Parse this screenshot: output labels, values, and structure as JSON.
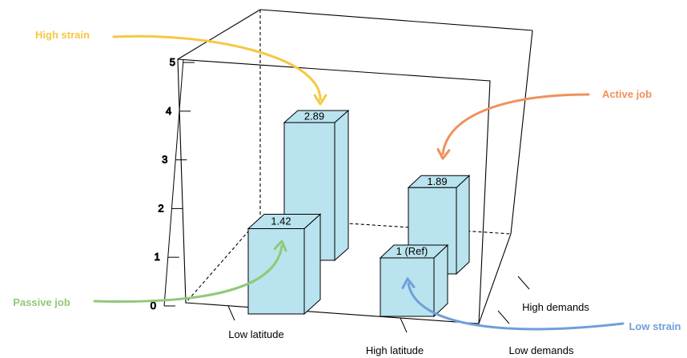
{
  "chart_data": {
    "type": "bar",
    "y_ticks": [
      0,
      1,
      2,
      3,
      4,
      5
    ],
    "ylim": [
      0,
      5
    ],
    "latitude_categories": [
      "Low latitude",
      "High latitude"
    ],
    "demands_categories": [
      "High demands",
      "Low demands"
    ],
    "bars": [
      {
        "latitude": "Low latitude",
        "demands": "High demands",
        "value": 2.89,
        "label": "2.89",
        "quadrant": "High strain",
        "color": "#f5c842"
      },
      {
        "latitude": "Low latitude",
        "demands": "Low demands",
        "value": 1.42,
        "label": "1.42",
        "quadrant": "Passive job",
        "color": "#90c978"
      },
      {
        "latitude": "High latitude",
        "demands": "High demands",
        "value": 1.89,
        "label": "1.89",
        "quadrant": "Active job",
        "color": "#f0915a"
      },
      {
        "latitude": "High latitude",
        "demands": "Low demands",
        "value": 1.0,
        "label": "1 (Ref)",
        "quadrant": "Low strain",
        "color": "#6f9fd8"
      }
    ],
    "bar_color": "#b9e3ee",
    "grid": false
  }
}
